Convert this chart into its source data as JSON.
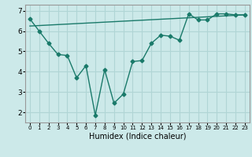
{
  "line1_x": [
    0,
    1,
    2,
    3,
    4,
    5,
    6,
    7,
    8,
    9,
    10,
    11,
    12,
    13,
    14,
    15,
    16,
    17,
    18,
    19,
    20,
    21,
    22,
    23
  ],
  "line1_y": [
    6.6,
    6.0,
    5.4,
    4.85,
    4.8,
    3.7,
    4.3,
    1.85,
    4.1,
    2.45,
    2.9,
    4.5,
    4.55,
    5.4,
    5.8,
    5.75,
    5.55,
    6.85,
    6.55,
    6.55,
    6.85,
    6.85,
    6.8,
    6.8
  ],
  "line2_x": [
    0,
    23
  ],
  "line2_y": [
    6.25,
    6.8
  ],
  "color": "#1a7a6a",
  "bg_color": "#cce9e9",
  "grid_color": "#b0d5d5",
  "xlabel": "Humidex (Indice chaleur)",
  "ylim": [
    1.5,
    7.3
  ],
  "xlim": [
    -0.5,
    23.5
  ],
  "yticks": [
    2,
    3,
    4,
    5,
    6,
    7
  ],
  "xticks": [
    0,
    1,
    2,
    3,
    4,
    5,
    6,
    7,
    8,
    9,
    10,
    11,
    12,
    13,
    14,
    15,
    16,
    17,
    18,
    19,
    20,
    21,
    22,
    23
  ],
  "xtick_labels": [
    "0",
    "1",
    "2",
    "3",
    "4",
    "5",
    "6",
    "7",
    "8",
    "9",
    "10",
    "11",
    "12",
    "13",
    "14",
    "15",
    "16",
    "17",
    "18",
    "19",
    "20",
    "21",
    "22",
    "23"
  ],
  "marker": "D",
  "marker_size": 2.5,
  "line_width": 1.0
}
